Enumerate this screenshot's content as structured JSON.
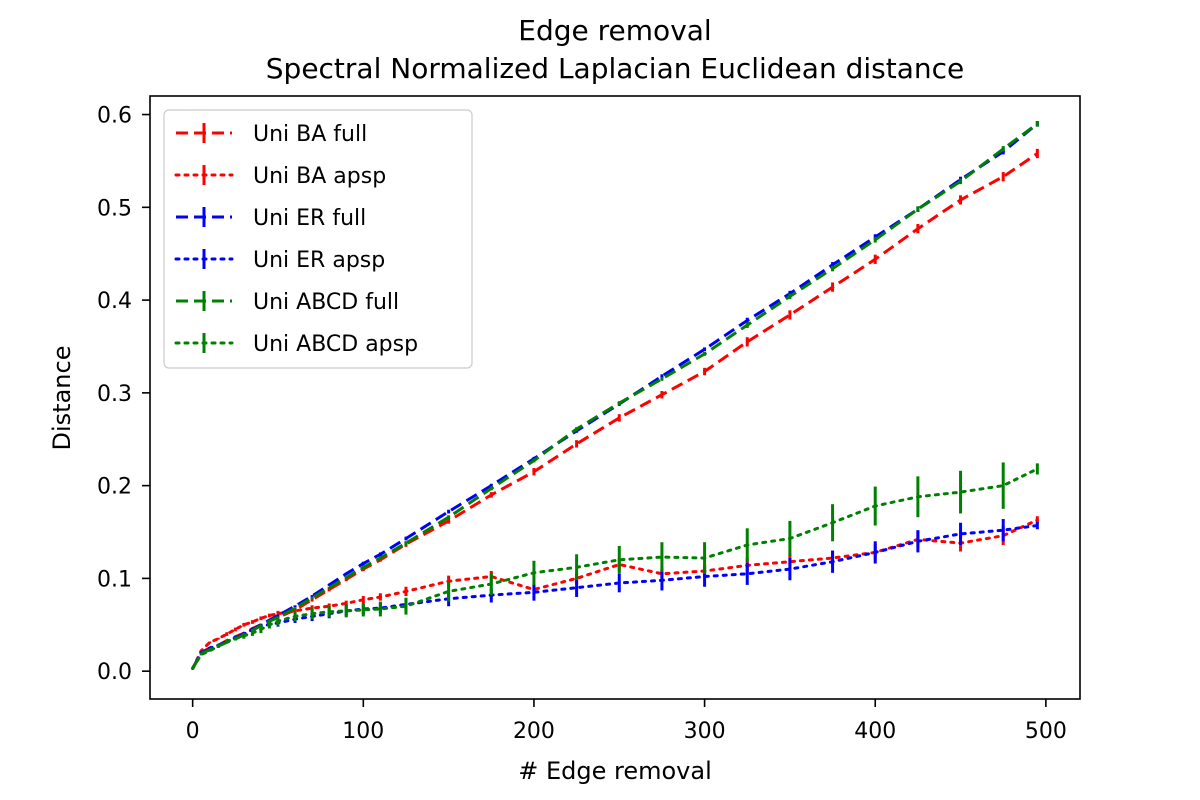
{
  "chart_data": {
    "type": "line",
    "title": "Edge removal",
    "subtitle": "Spectral Normalized Laplacian Euclidean distance",
    "xlabel": "#  Edge removal",
    "ylabel": "Distance",
    "xlim": [
      -25,
      520
    ],
    "ylim": [
      -0.03,
      0.62
    ],
    "x_ticks": [
      0,
      100,
      200,
      300,
      400,
      500
    ],
    "y_ticks": [
      0.0,
      0.1,
      0.2,
      0.3,
      0.4,
      0.5,
      0.6
    ],
    "x_tick_labels": [
      "0",
      "100",
      "200",
      "300",
      "400",
      "500"
    ],
    "y_tick_labels": [
      "0.0",
      "0.1",
      "0.2",
      "0.3",
      "0.4",
      "0.5",
      "0.6"
    ],
    "grid": false,
    "legend_position": "upper-left",
    "x": [
      0,
      5,
      10,
      15,
      20,
      25,
      30,
      35,
      40,
      45,
      50,
      60,
      70,
      80,
      90,
      100,
      110,
      125,
      150,
      175,
      200,
      225,
      250,
      275,
      300,
      325,
      350,
      375,
      400,
      425,
      450,
      475,
      495
    ],
    "series": [
      {
        "name": "Uni BA full",
        "color": "#ff0000",
        "linestyle": "dashed",
        "values": [
          0.003,
          0.02,
          0.025,
          0.028,
          0.033,
          0.037,
          0.041,
          0.046,
          0.05,
          0.054,
          0.058,
          0.066,
          0.077,
          0.088,
          0.099,
          0.11,
          0.12,
          0.137,
          0.162,
          0.19,
          0.215,
          0.245,
          0.273,
          0.298,
          0.323,
          0.355,
          0.384,
          0.414,
          0.444,
          0.477,
          0.508,
          0.533,
          0.558
        ],
        "errors": [
          0.001,
          0.001,
          0.001,
          0.001,
          0.001,
          0.001,
          0.001,
          0.001,
          0.001,
          0.001,
          0.002,
          0.002,
          0.002,
          0.002,
          0.002,
          0.002,
          0.002,
          0.003,
          0.003,
          0.003,
          0.004,
          0.004,
          0.004,
          0.004,
          0.004,
          0.005,
          0.005,
          0.005,
          0.005,
          0.005,
          0.005,
          0.005,
          0.005
        ]
      },
      {
        "name": "Uni BA apsp",
        "color": "#ff0000",
        "linestyle": "dotted",
        "values": [
          0.003,
          0.022,
          0.031,
          0.035,
          0.04,
          0.045,
          0.05,
          0.053,
          0.057,
          0.06,
          0.062,
          0.065,
          0.068,
          0.07,
          0.073,
          0.077,
          0.08,
          0.086,
          0.097,
          0.102,
          0.088,
          0.1,
          0.115,
          0.105,
          0.108,
          0.114,
          0.118,
          0.122,
          0.128,
          0.142,
          0.138,
          0.146,
          0.163
        ],
        "errors": [
          0.001,
          0.001,
          0.001,
          0.001,
          0.002,
          0.002,
          0.002,
          0.002,
          0.002,
          0.002,
          0.003,
          0.003,
          0.003,
          0.003,
          0.003,
          0.004,
          0.004,
          0.005,
          0.006,
          0.006,
          0.006,
          0.006,
          0.007,
          0.007,
          0.007,
          0.008,
          0.008,
          0.008,
          0.009,
          0.009,
          0.009,
          0.01,
          0.004
        ]
      },
      {
        "name": "Uni ER full",
        "color": "#0000ff",
        "linestyle": "dashed",
        "values": [
          0.003,
          0.02,
          0.024,
          0.028,
          0.032,
          0.036,
          0.04,
          0.045,
          0.05,
          0.055,
          0.06,
          0.07,
          0.081,
          0.093,
          0.105,
          0.116,
          0.126,
          0.143,
          0.172,
          0.2,
          0.229,
          0.259,
          0.288,
          0.318,
          0.347,
          0.378,
          0.407,
          0.438,
          0.468,
          0.498,
          0.53,
          0.56,
          0.59
        ],
        "errors": [
          0.001,
          0.001,
          0.001,
          0.001,
          0.001,
          0.001,
          0.001,
          0.001,
          0.001,
          0.001,
          0.001,
          0.001,
          0.001,
          0.001,
          0.001,
          0.002,
          0.002,
          0.002,
          0.002,
          0.002,
          0.002,
          0.002,
          0.002,
          0.002,
          0.002,
          0.003,
          0.003,
          0.003,
          0.003,
          0.003,
          0.003,
          0.003,
          0.003
        ]
      },
      {
        "name": "Uni ER apsp",
        "color": "#0000ff",
        "linestyle": "dotted",
        "values": [
          0.003,
          0.02,
          0.025,
          0.028,
          0.032,
          0.036,
          0.04,
          0.045,
          0.049,
          0.05,
          0.052,
          0.056,
          0.059,
          0.062,
          0.065,
          0.067,
          0.068,
          0.072,
          0.078,
          0.082,
          0.085,
          0.09,
          0.095,
          0.098,
          0.102,
          0.105,
          0.11,
          0.118,
          0.128,
          0.14,
          0.148,
          0.152,
          0.157
        ],
        "errors": [
          0.001,
          0.001,
          0.001,
          0.001,
          0.001,
          0.002,
          0.002,
          0.002,
          0.002,
          0.003,
          0.004,
          0.004,
          0.005,
          0.005,
          0.006,
          0.006,
          0.006,
          0.007,
          0.008,
          0.008,
          0.009,
          0.01,
          0.01,
          0.011,
          0.011,
          0.012,
          0.012,
          0.012,
          0.012,
          0.012,
          0.012,
          0.012,
          0.004
        ]
      },
      {
        "name": "Uni ABCD full",
        "color": "#008000",
        "linestyle": "dashed",
        "values": [
          0.003,
          0.019,
          0.023,
          0.027,
          0.031,
          0.035,
          0.039,
          0.044,
          0.049,
          0.054,
          0.058,
          0.068,
          0.079,
          0.09,
          0.101,
          0.112,
          0.122,
          0.138,
          0.166,
          0.197,
          0.227,
          0.261,
          0.289,
          0.315,
          0.342,
          0.373,
          0.404,
          0.434,
          0.465,
          0.498,
          0.528,
          0.563,
          0.59
        ],
        "errors": [
          0.001,
          0.001,
          0.001,
          0.001,
          0.001,
          0.001,
          0.001,
          0.001,
          0.001,
          0.001,
          0.001,
          0.001,
          0.001,
          0.001,
          0.001,
          0.002,
          0.002,
          0.002,
          0.002,
          0.002,
          0.002,
          0.002,
          0.002,
          0.002,
          0.002,
          0.003,
          0.003,
          0.003,
          0.003,
          0.003,
          0.003,
          0.003,
          0.003
        ]
      },
      {
        "name": "Uni ABCD apsp",
        "color": "#008000",
        "linestyle": "dotted",
        "values": [
          0.003,
          0.018,
          0.022,
          0.027,
          0.032,
          0.035,
          0.038,
          0.041,
          0.045,
          0.05,
          0.054,
          0.059,
          0.062,
          0.064,
          0.065,
          0.066,
          0.067,
          0.07,
          0.086,
          0.094,
          0.106,
          0.112,
          0.12,
          0.123,
          0.122,
          0.136,
          0.143,
          0.16,
          0.178,
          0.188,
          0.193,
          0.2,
          0.218
        ],
        "errors": [
          0.001,
          0.001,
          0.001,
          0.002,
          0.002,
          0.002,
          0.003,
          0.003,
          0.004,
          0.004,
          0.005,
          0.005,
          0.006,
          0.006,
          0.007,
          0.007,
          0.008,
          0.009,
          0.011,
          0.012,
          0.013,
          0.014,
          0.015,
          0.016,
          0.017,
          0.018,
          0.019,
          0.02,
          0.021,
          0.022,
          0.023,
          0.025,
          0.006
        ]
      }
    ]
  }
}
